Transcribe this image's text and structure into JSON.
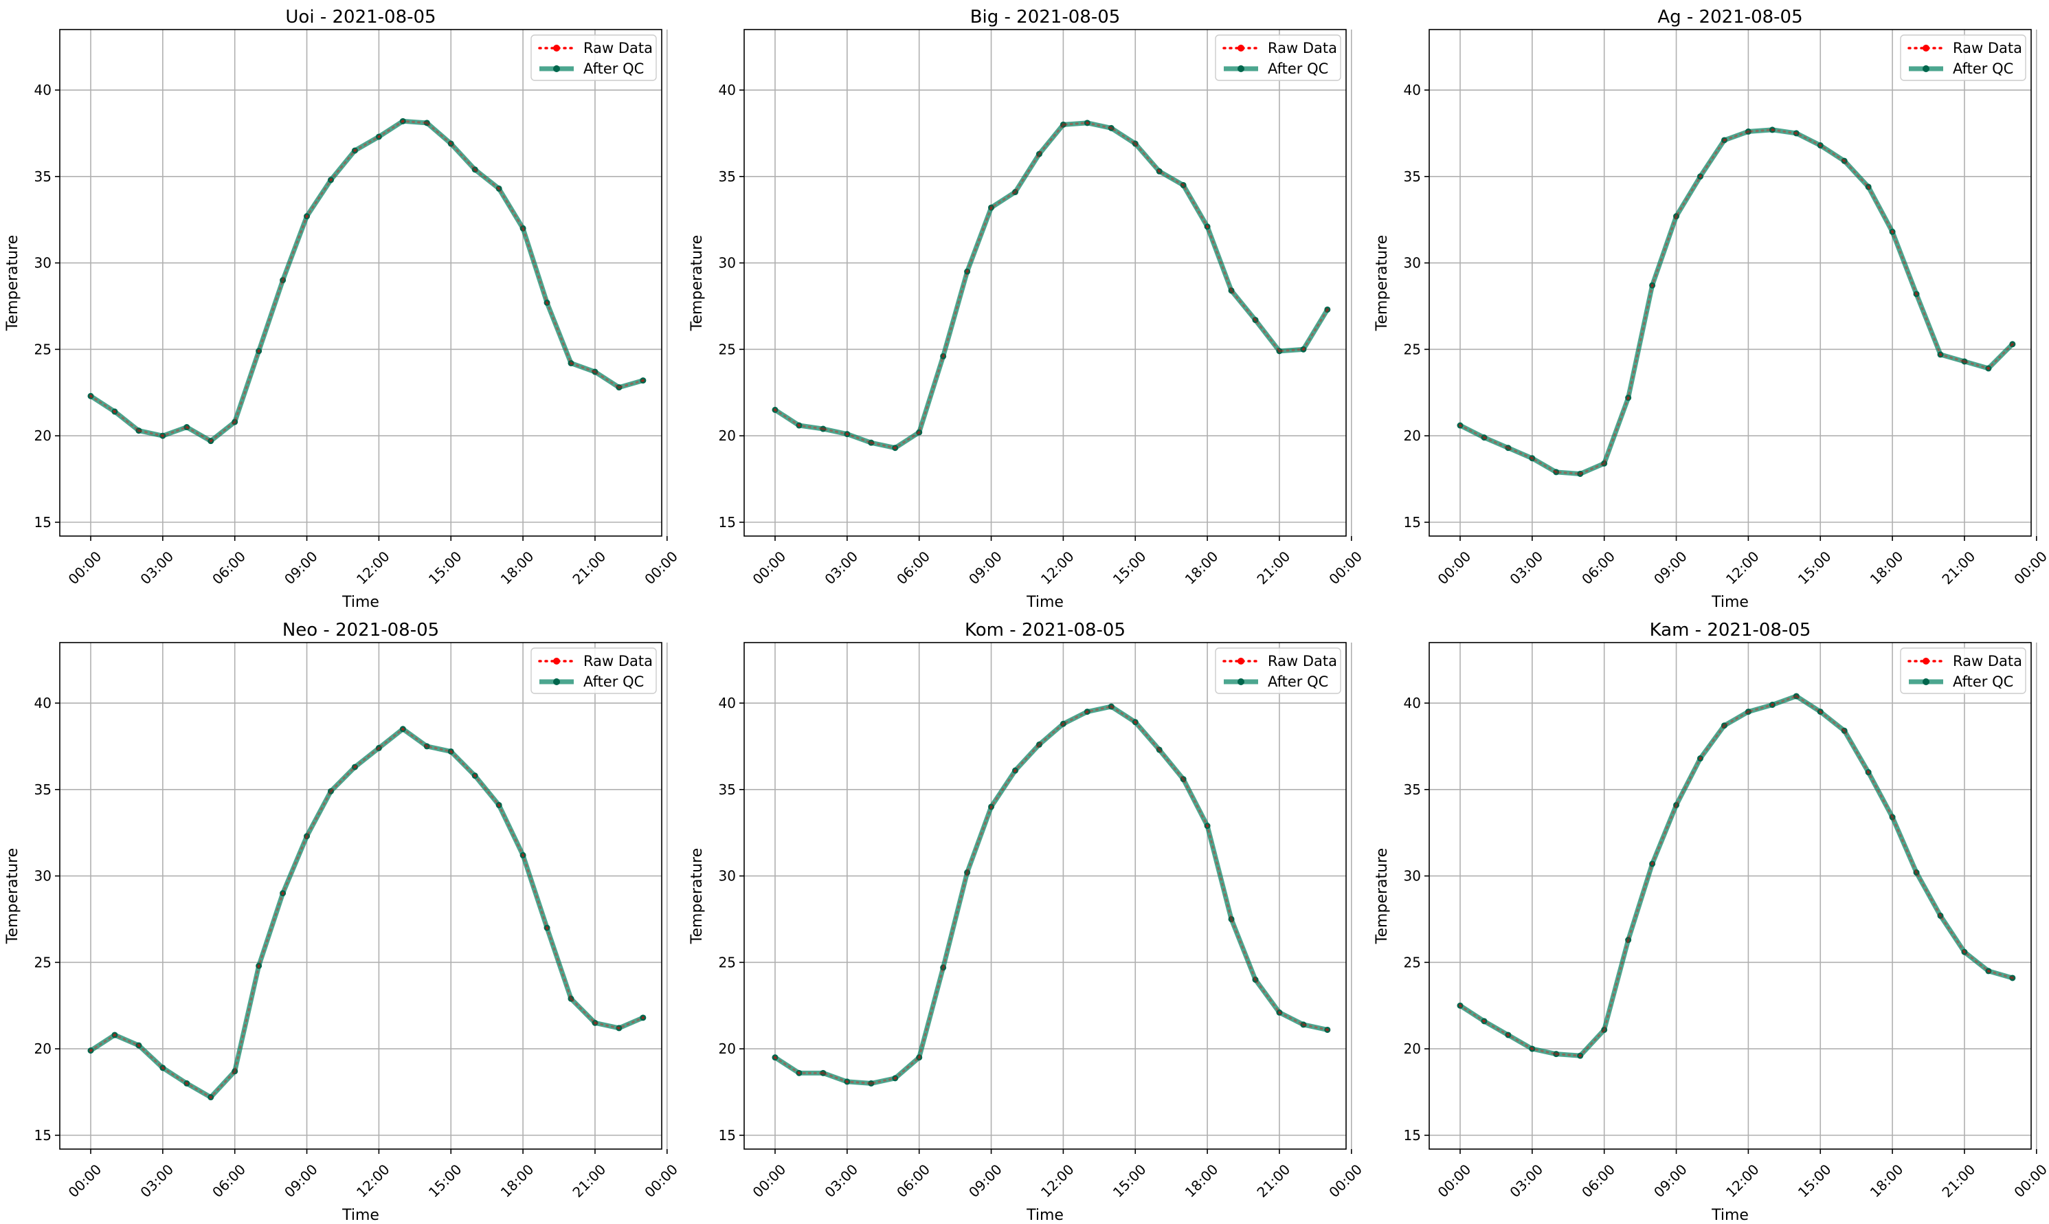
{
  "figure": {
    "legend_placement": "upper-right",
    "grid": true,
    "colors": {
      "raw": "#ff0000",
      "qc": "#008060",
      "qc_marker": "#00664c"
    }
  },
  "chart_data": [
    {
      "type": "line",
      "title": "Uoi - 2021-08-05",
      "xlabel": "Time",
      "ylabel": "Temperature",
      "x": [
        "00:00",
        "01:00",
        "02:00",
        "03:00",
        "04:00",
        "05:00",
        "06:00",
        "07:00",
        "08:00",
        "09:00",
        "10:00",
        "11:00",
        "12:00",
        "13:00",
        "14:00",
        "15:00",
        "16:00",
        "17:00",
        "18:00",
        "19:00",
        "20:00",
        "21:00",
        "22:00",
        "23:00"
      ],
      "xticks": [
        "00:00",
        "03:00",
        "06:00",
        "09:00",
        "12:00",
        "15:00",
        "18:00",
        "21:00",
        "00:00"
      ],
      "yticks": [
        15,
        20,
        25,
        30,
        35,
        40
      ],
      "ylim": [
        14.2,
        43.5
      ],
      "series": [
        {
          "name": "Raw Data",
          "values": [
            22.3,
            21.4,
            20.3,
            20.0,
            20.5,
            19.7,
            20.8,
            24.9,
            29.0,
            32.7,
            34.8,
            36.5,
            37.3,
            38.2,
            38.1,
            36.9,
            35.4,
            34.3,
            32.0,
            27.7,
            24.2,
            23.7,
            22.8,
            23.2
          ]
        },
        {
          "name": "After QC",
          "values": [
            22.3,
            21.4,
            20.3,
            20.0,
            20.5,
            19.7,
            20.8,
            24.9,
            29.0,
            32.7,
            34.8,
            36.5,
            37.3,
            38.2,
            38.1,
            36.9,
            35.4,
            34.3,
            32.0,
            27.7,
            24.2,
            23.7,
            22.8,
            23.2
          ]
        }
      ]
    },
    {
      "type": "line",
      "title": "Big - 2021-08-05",
      "xlabel": "Time",
      "ylabel": "Temperature",
      "x": [
        "00:00",
        "01:00",
        "02:00",
        "03:00",
        "04:00",
        "05:00",
        "06:00",
        "07:00",
        "08:00",
        "09:00",
        "10:00",
        "11:00",
        "12:00",
        "13:00",
        "14:00",
        "15:00",
        "16:00",
        "17:00",
        "18:00",
        "19:00",
        "20:00",
        "21:00",
        "22:00",
        "23:00"
      ],
      "xticks": [
        "00:00",
        "03:00",
        "06:00",
        "09:00",
        "12:00",
        "15:00",
        "18:00",
        "21:00",
        "00:00"
      ],
      "yticks": [
        15,
        20,
        25,
        30,
        35,
        40
      ],
      "ylim": [
        14.2,
        43.5
      ],
      "series": [
        {
          "name": "Raw Data",
          "values": [
            21.5,
            20.6,
            20.4,
            20.1,
            19.6,
            19.3,
            20.2,
            24.6,
            29.5,
            33.2,
            34.1,
            36.3,
            38.0,
            38.1,
            37.8,
            36.9,
            35.3,
            34.5,
            32.1,
            28.4,
            26.7,
            24.9,
            25.0,
            27.3
          ]
        },
        {
          "name": "After QC",
          "values": [
            21.5,
            20.6,
            20.4,
            20.1,
            19.6,
            19.3,
            20.2,
            24.6,
            29.5,
            33.2,
            34.1,
            36.3,
            38.0,
            38.1,
            37.8,
            36.9,
            35.3,
            34.5,
            32.1,
            28.4,
            26.7,
            24.9,
            25.0,
            27.3
          ]
        }
      ]
    },
    {
      "type": "line",
      "title": "Ag - 2021-08-05",
      "xlabel": "Time",
      "ylabel": "Temperature",
      "x": [
        "00:00",
        "01:00",
        "02:00",
        "03:00",
        "04:00",
        "05:00",
        "06:00",
        "07:00",
        "08:00",
        "09:00",
        "10:00",
        "11:00",
        "12:00",
        "13:00",
        "14:00",
        "15:00",
        "16:00",
        "17:00",
        "18:00",
        "19:00",
        "20:00",
        "21:00",
        "22:00",
        "23:00"
      ],
      "xticks": [
        "00:00",
        "03:00",
        "06:00",
        "09:00",
        "12:00",
        "15:00",
        "18:00",
        "21:00",
        "00:00"
      ],
      "yticks": [
        15,
        20,
        25,
        30,
        35,
        40
      ],
      "ylim": [
        14.2,
        43.5
      ],
      "series": [
        {
          "name": "Raw Data",
          "values": [
            20.6,
            19.9,
            19.3,
            18.7,
            17.9,
            17.8,
            18.4,
            22.2,
            28.7,
            32.7,
            35.0,
            37.1,
            37.6,
            37.7,
            37.5,
            36.8,
            35.9,
            34.4,
            31.8,
            28.2,
            24.7,
            24.3,
            23.9,
            25.3
          ]
        },
        {
          "name": "After QC",
          "values": [
            20.6,
            19.9,
            19.3,
            18.7,
            17.9,
            17.8,
            18.4,
            22.2,
            28.7,
            32.7,
            35.0,
            37.1,
            37.6,
            37.7,
            37.5,
            36.8,
            35.9,
            34.4,
            31.8,
            28.2,
            24.7,
            24.3,
            23.9,
            25.3
          ]
        }
      ]
    },
    {
      "type": "line",
      "title": "Neo - 2021-08-05",
      "xlabel": "Time",
      "ylabel": "Temperature",
      "x": [
        "00:00",
        "01:00",
        "02:00",
        "03:00",
        "04:00",
        "05:00",
        "06:00",
        "07:00",
        "08:00",
        "09:00",
        "10:00",
        "11:00",
        "12:00",
        "13:00",
        "14:00",
        "15:00",
        "16:00",
        "17:00",
        "18:00",
        "19:00",
        "20:00",
        "21:00",
        "22:00",
        "23:00"
      ],
      "xticks": [
        "00:00",
        "03:00",
        "06:00",
        "09:00",
        "12:00",
        "15:00",
        "18:00",
        "21:00",
        "00:00"
      ],
      "yticks": [
        15,
        20,
        25,
        30,
        35,
        40
      ],
      "ylim": [
        14.2,
        43.5
      ],
      "series": [
        {
          "name": "Raw Data",
          "values": [
            19.9,
            20.8,
            20.2,
            18.9,
            18.0,
            17.2,
            18.7,
            24.8,
            29.0,
            32.3,
            34.9,
            36.3,
            37.4,
            38.5,
            37.5,
            37.2,
            35.8,
            34.1,
            31.2,
            27.0,
            22.9,
            21.5,
            21.2,
            21.8
          ]
        },
        {
          "name": "After QC",
          "values": [
            19.9,
            20.8,
            20.2,
            18.9,
            18.0,
            17.2,
            18.7,
            24.8,
            29.0,
            32.3,
            34.9,
            36.3,
            37.4,
            38.5,
            37.5,
            37.2,
            35.8,
            34.1,
            31.2,
            27.0,
            22.9,
            21.5,
            21.2,
            21.8
          ]
        }
      ]
    },
    {
      "type": "line",
      "title": "Kom - 2021-08-05",
      "xlabel": "Time",
      "ylabel": "Temperature",
      "x": [
        "00:00",
        "01:00",
        "02:00",
        "03:00",
        "04:00",
        "05:00",
        "06:00",
        "07:00",
        "08:00",
        "09:00",
        "10:00",
        "11:00",
        "12:00",
        "13:00",
        "14:00",
        "15:00",
        "16:00",
        "17:00",
        "18:00",
        "19:00",
        "20:00",
        "21:00",
        "22:00",
        "23:00"
      ],
      "xticks": [
        "00:00",
        "03:00",
        "06:00",
        "09:00",
        "12:00",
        "15:00",
        "18:00",
        "21:00",
        "00:00"
      ],
      "yticks": [
        15,
        20,
        25,
        30,
        35,
        40
      ],
      "ylim": [
        14.2,
        43.5
      ],
      "series": [
        {
          "name": "Raw Data",
          "values": [
            19.5,
            18.6,
            18.6,
            18.1,
            18.0,
            18.3,
            19.5,
            24.7,
            30.2,
            34.0,
            36.1,
            37.6,
            38.8,
            39.5,
            39.8,
            38.9,
            37.3,
            35.6,
            32.9,
            27.5,
            24.0,
            22.1,
            21.4,
            21.1
          ]
        },
        {
          "name": "After QC",
          "values": [
            19.5,
            18.6,
            18.6,
            18.1,
            18.0,
            18.3,
            19.5,
            24.7,
            30.2,
            34.0,
            36.1,
            37.6,
            38.8,
            39.5,
            39.8,
            38.9,
            37.3,
            35.6,
            32.9,
            27.5,
            24.0,
            22.1,
            21.4,
            21.1
          ]
        }
      ]
    },
    {
      "type": "line",
      "title": "Kam - 2021-08-05",
      "xlabel": "Time",
      "ylabel": "Temperature",
      "x": [
        "00:00",
        "01:00",
        "02:00",
        "03:00",
        "04:00",
        "05:00",
        "06:00",
        "07:00",
        "08:00",
        "09:00",
        "10:00",
        "11:00",
        "12:00",
        "13:00",
        "14:00",
        "15:00",
        "16:00",
        "17:00",
        "18:00",
        "19:00",
        "20:00",
        "21:00",
        "22:00",
        "23:00"
      ],
      "xticks": [
        "00:00",
        "03:00",
        "06:00",
        "09:00",
        "12:00",
        "15:00",
        "18:00",
        "21:00",
        "00:00"
      ],
      "yticks": [
        15,
        20,
        25,
        30,
        35,
        40
      ],
      "ylim": [
        14.2,
        43.5
      ],
      "series": [
        {
          "name": "Raw Data",
          "values": [
            22.5,
            21.6,
            20.8,
            20.0,
            19.7,
            19.6,
            21.1,
            26.3,
            30.7,
            34.1,
            36.8,
            38.7,
            39.5,
            39.9,
            40.4,
            39.5,
            38.4,
            36.0,
            33.4,
            30.2,
            27.7,
            25.6,
            24.5,
            24.1
          ]
        },
        {
          "name": "After QC",
          "values": [
            22.5,
            21.6,
            20.8,
            20.0,
            19.7,
            19.6,
            21.1,
            26.3,
            30.7,
            34.1,
            36.8,
            38.7,
            39.5,
            39.9,
            40.4,
            39.5,
            38.4,
            36.0,
            33.4,
            30.2,
            27.7,
            25.6,
            24.5,
            24.1
          ]
        }
      ]
    }
  ]
}
